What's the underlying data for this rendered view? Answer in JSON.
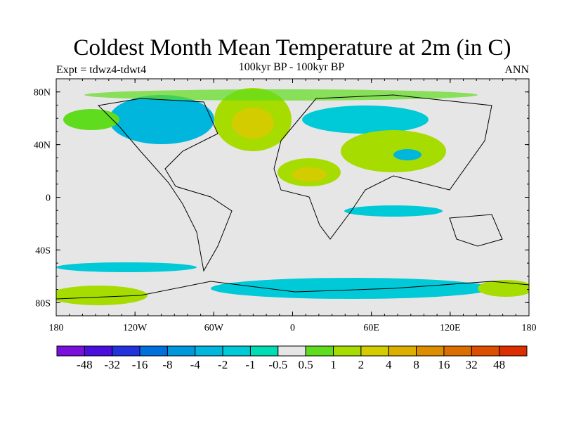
{
  "title": "Coldest Month Mean Temperature at 2m (in C)",
  "left_string": "Expt = tdwz4-tdwt4",
  "center_string": "100kyr BP - 100kyr BP",
  "right_string": "ANN",
  "map": {
    "projection": "cylindrical equidistant",
    "lon_range": [
      -180,
      180
    ],
    "lat_range": [
      -90,
      90
    ],
    "lon_ticks": [
      {
        "v": -180,
        "label": "180"
      },
      {
        "v": -120,
        "label": "120W"
      },
      {
        "v": -60,
        "label": "60W"
      },
      {
        "v": 0,
        "label": "0"
      },
      {
        "v": 60,
        "label": "60E"
      },
      {
        "v": 120,
        "label": "120E"
      },
      {
        "v": 180,
        "label": "180"
      }
    ],
    "lat_ticks": [
      {
        "v": 80,
        "label": "80N"
      },
      {
        "v": 40,
        "label": "40N"
      },
      {
        "v": 0,
        "label": "0"
      },
      {
        "v": -40,
        "label": "40S"
      },
      {
        "v": -80,
        "label": "80S"
      }
    ],
    "background_color": "#e6e6e6"
  },
  "colorbar": {
    "labels": [
      "-48",
      "-32",
      "-16",
      "-8",
      "-4",
      "-2",
      "-1",
      "-0.5",
      "0.5",
      "1",
      "2",
      "4",
      "8",
      "16",
      "32",
      "48"
    ],
    "colors": [
      "#7a10dc",
      "#4a0fdc",
      "#2232dc",
      "#0070dc",
      "#0098dc",
      "#00b6dc",
      "#00cad8",
      "#00dcb4",
      "#e6e6e6",
      "#60dc1e",
      "#a6dc00",
      "#d2cc00",
      "#dcae00",
      "#dc8e00",
      "#dc6e00",
      "#dc4e00",
      "#dc2e00"
    ]
  }
}
